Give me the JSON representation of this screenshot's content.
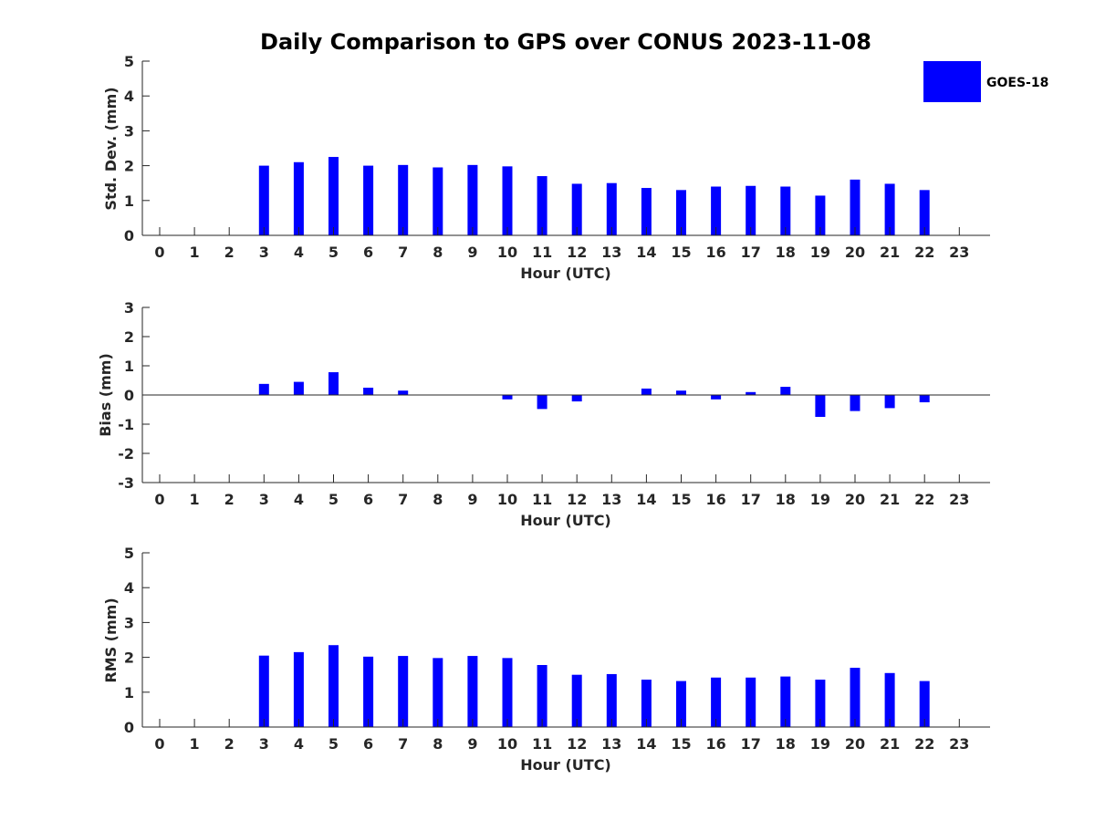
{
  "title": "Daily Comparison to GPS over CONUS 2023-11-08",
  "legend": {
    "label": "GOES-18",
    "color": "#0000ff"
  },
  "chart_data": [
    {
      "type": "bar",
      "name": "std-dev",
      "categories": [
        "0",
        "1",
        "2",
        "3",
        "4",
        "5",
        "6",
        "7",
        "8",
        "9",
        "10",
        "11",
        "12",
        "13",
        "14",
        "15",
        "16",
        "17",
        "18",
        "19",
        "20",
        "21",
        "22",
        "23"
      ],
      "series": [
        {
          "name": "GOES-18",
          "values": [
            null,
            null,
            null,
            2.0,
            2.1,
            2.25,
            2.0,
            2.02,
            1.95,
            2.02,
            1.98,
            1.7,
            1.48,
            1.5,
            1.36,
            1.3,
            1.4,
            1.42,
            1.4,
            1.14,
            1.6,
            1.48,
            1.3,
            null
          ]
        }
      ],
      "xlabel": "Hour (UTC)",
      "ylabel": "Std. Dev. (mm)",
      "ylim": [
        0,
        5
      ],
      "yticks": [
        "0",
        "1",
        "2",
        "3",
        "4",
        "5"
      ]
    },
    {
      "type": "bar",
      "name": "bias",
      "categories": [
        "0",
        "1",
        "2",
        "3",
        "4",
        "5",
        "6",
        "7",
        "8",
        "9",
        "10",
        "11",
        "12",
        "13",
        "14",
        "15",
        "16",
        "17",
        "18",
        "19",
        "20",
        "21",
        "22",
        "23"
      ],
      "series": [
        {
          "name": "GOES-18",
          "values": [
            null,
            null,
            null,
            0.38,
            0.45,
            0.78,
            0.25,
            0.15,
            0.0,
            0.0,
            -0.15,
            -0.48,
            -0.22,
            0.0,
            0.22,
            0.15,
            -0.15,
            0.1,
            0.28,
            -0.75,
            -0.55,
            -0.45,
            -0.25,
            null
          ]
        }
      ],
      "xlabel": "Hour (UTC)",
      "ylabel": "Bias (mm)",
      "ylim": [
        -3,
        3
      ],
      "yticks": [
        "-3",
        "-2",
        "-1",
        "0",
        "1",
        "2",
        "3"
      ],
      "zero_line": true
    },
    {
      "type": "bar",
      "name": "rms",
      "categories": [
        "0",
        "1",
        "2",
        "3",
        "4",
        "5",
        "6",
        "7",
        "8",
        "9",
        "10",
        "11",
        "12",
        "13",
        "14",
        "15",
        "16",
        "17",
        "18",
        "19",
        "20",
        "21",
        "22",
        "23"
      ],
      "series": [
        {
          "name": "GOES-18",
          "values": [
            null,
            null,
            null,
            2.05,
            2.15,
            2.35,
            2.02,
            2.04,
            1.98,
            2.04,
            1.98,
            1.78,
            1.5,
            1.52,
            1.36,
            1.32,
            1.42,
            1.42,
            1.45,
            1.36,
            1.7,
            1.55,
            1.32,
            null
          ]
        }
      ],
      "xlabel": "Hour (UTC)",
      "ylabel": "RMS (mm)",
      "ylim": [
        0,
        5
      ],
      "yticks": [
        "0",
        "1",
        "2",
        "3",
        "4",
        "5"
      ]
    }
  ]
}
